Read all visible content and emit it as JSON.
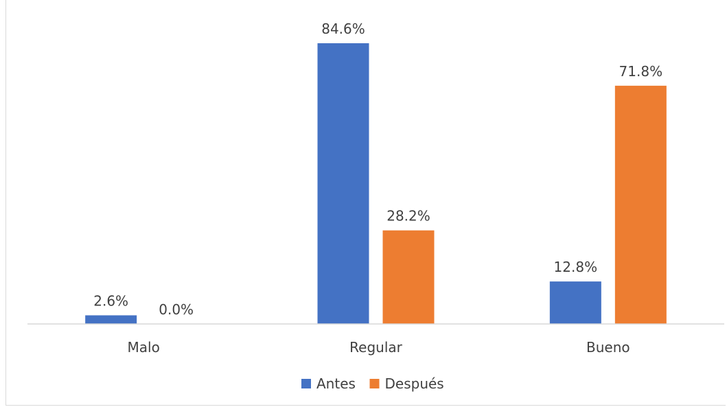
{
  "chart_data": {
    "type": "bar",
    "title": "",
    "xlabel": "",
    "ylabel": "",
    "categories": [
      "Malo",
      "Regular",
      "Bueno"
    ],
    "series": [
      {
        "name": "Antes",
        "color": "#4472C4",
        "values": [
          2.6,
          84.6,
          12.8
        ],
        "labels": [
          "2.6%",
          "84.6%",
          "12.8%"
        ]
      },
      {
        "name": "Después",
        "color": "#ED7D31",
        "values": [
          0.0,
          28.2,
          71.8
        ],
        "labels": [
          "0.0%",
          "28.2%",
          "71.8%"
        ]
      }
    ],
    "ylim": [
      0,
      84.6
    ],
    "grid": false,
    "legend_position": "bottom"
  }
}
